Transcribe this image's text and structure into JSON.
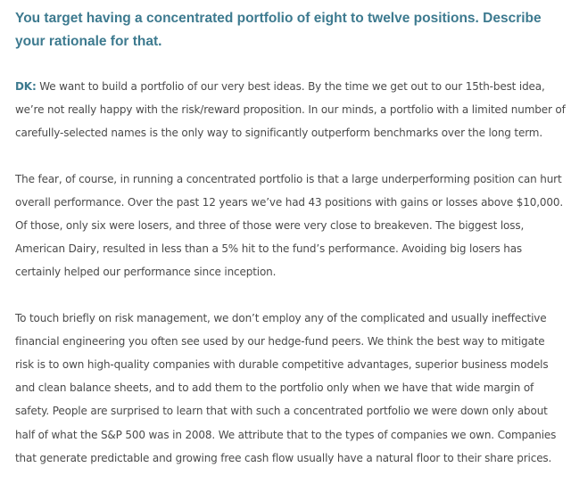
{
  "question": "You target having a concentrated portfolio of eight to twelve positions. Describe your rationale for that.",
  "answer": {
    "speaker": "DK:",
    "paragraphs": [
      " We want to build a portfolio of our very best ideas. By the time we get out to our 15th-best idea, we’re not really happy with the risk/reward proposition. In our minds, a portfolio with a limited number of carefully-selected names is the only way to significantly outperform benchmarks over the long term.",
      "The fear, of course, in running a concentrated portfolio is that a large underperforming position can hurt overall performance. Over the past 12 years we’ve had 43 positions with gains or losses above $10,000. Of those, only six were losers, and three of those were very close to breakeven. The biggest loss, American Dairy, resulted in less than a 5% hit to the fund’s performance. Avoiding big losers has certainly helped our performance since inception.",
      "To touch briefly on risk management, we don’t employ any of the complicated and usually ineffective financial engineering you often see used by our hedge-fund peers. We think the best way to mitigate risk is to own high-quality companies with durable competitive advantages, superior business models and clean balance sheets, and to add them to the portfolio only when we have that wide margin of safety. People are surprised to learn that with such a concentrated portfolio we were down only about half of what the S&P 500 was in 2008. We attribute that to the types of companies we own. Companies that generate predictable and growing free cash flow usually have a natural floor to their share prices."
    ]
  }
}
